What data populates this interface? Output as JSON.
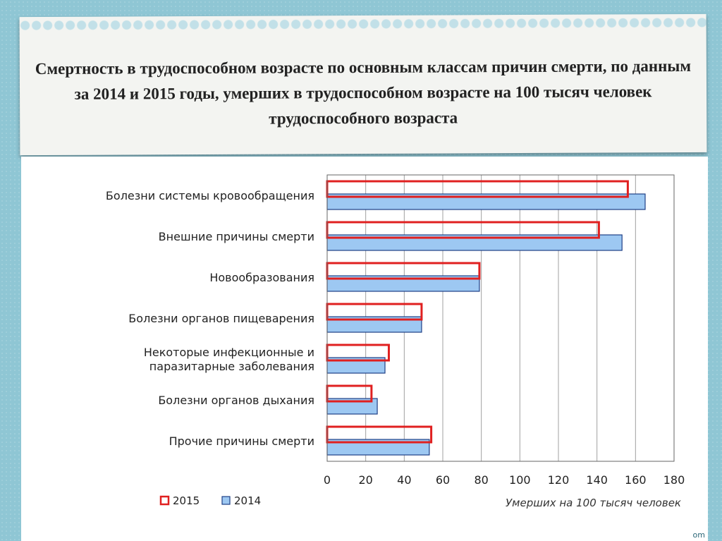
{
  "title": "Смертность в трудоспособном возрасте по основным классам причин смерти, по данным за 2014 и 2015 годы, умерших в трудоспособном возрасте на 100 тысяч человек трудоспособного возраста",
  "watermark": "om",
  "chart_data": {
    "type": "bar",
    "orientation": "horizontal",
    "categories": [
      [
        "Болезни системы кровообращения"
      ],
      [
        "Внешние причины смерти"
      ],
      [
        "Новообразования"
      ],
      [
        "Болезни органов пищеварения"
      ],
      [
        "Некоторые инфекционные и",
        "паразитарные заболевания"
      ],
      [
        "Болезни органов дыхания"
      ],
      [
        "Прочие причины смерти"
      ]
    ],
    "series": [
      {
        "name": "2015",
        "values": [
          156,
          141,
          79,
          49,
          32,
          23,
          54
        ]
      },
      {
        "name": "2014",
        "values": [
          165,
          153,
          79,
          49,
          30,
          26,
          53
        ]
      }
    ],
    "xlim": [
      0,
      180
    ],
    "xticks": [
      0,
      20,
      40,
      60,
      80,
      100,
      120,
      140,
      160,
      180
    ],
    "xlabel": "Умерших на 100 тысяч человек",
    "ylabel": "",
    "grid": true,
    "legend_position": "bottom-left",
    "colors": {
      "2015_stroke": "#e02020",
      "2015_fill": "#ffffff",
      "2014_fill": "#9dc8f2",
      "2014_stroke": "#1f3f86",
      "grid": "#a0a0a0",
      "axis": "#666666"
    }
  }
}
